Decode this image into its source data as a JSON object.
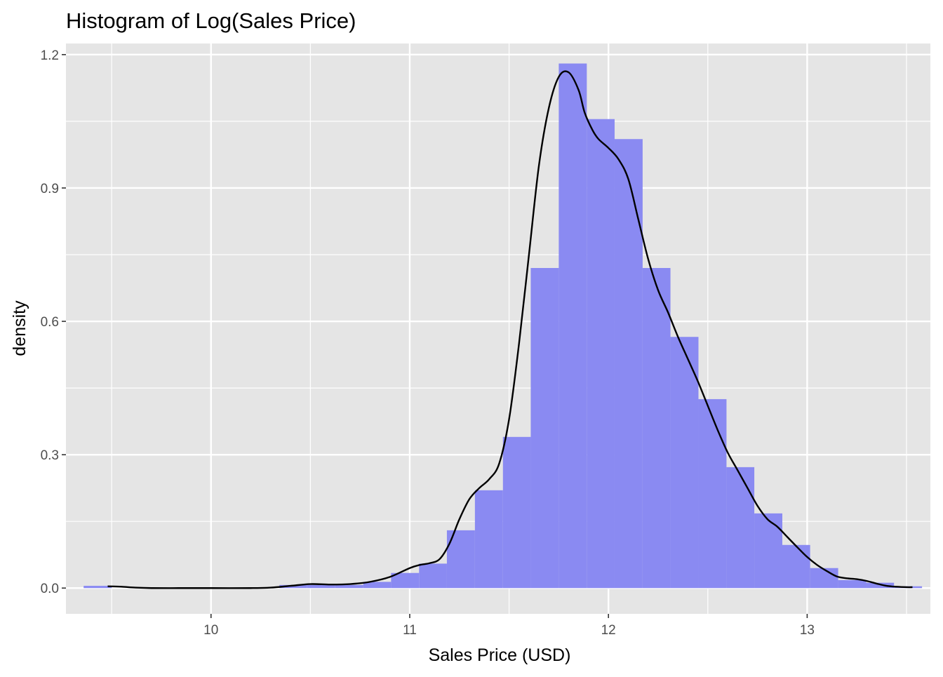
{
  "chart_data": {
    "type": "bar",
    "title": "Histogram of Log(Sales Price)",
    "xlabel": "Sales Price (USD)",
    "ylabel": "density",
    "xlim": [
      9.27,
      13.62
    ],
    "ylim": [
      -0.058,
      1.225
    ],
    "x_ticks": [
      10,
      11,
      12,
      13
    ],
    "x_tick_labels": [
      "10",
      "11",
      "12",
      "13"
    ],
    "x_minor_ticks": [
      9.5,
      10.5,
      11.5,
      12.5,
      13.5
    ],
    "y_ticks": [
      0.0,
      0.3,
      0.6,
      0.9,
      1.2
    ],
    "y_tick_labels": [
      "0.0",
      "0.3",
      "0.6",
      "0.9",
      "1.2"
    ],
    "y_minor_ticks": [
      0.15,
      0.45,
      0.75,
      1.05
    ],
    "grid": true,
    "legend": "none",
    "colors": {
      "panel_background": "#e5e5e5",
      "grid": "#ffffff",
      "bar_fill": "#8a8af2",
      "density_line": "#000000",
      "tick_text": "#4d4d4d"
    },
    "series": [
      {
        "type": "histogram",
        "bin_width": 0.1406,
        "bins": [
          {
            "x0": 9.359,
            "x1": 9.5,
            "density": 0.005
          },
          {
            "x0": 9.5,
            "x1": 9.64,
            "density": 0.0
          },
          {
            "x0": 9.64,
            "x1": 9.781,
            "density": 0.0
          },
          {
            "x0": 9.781,
            "x1": 9.922,
            "density": 0.0
          },
          {
            "x0": 9.922,
            "x1": 10.062,
            "density": 0.0
          },
          {
            "x0": 10.062,
            "x1": 10.203,
            "density": 0.0
          },
          {
            "x0": 10.203,
            "x1": 10.344,
            "density": 0.0
          },
          {
            "x0": 10.344,
            "x1": 10.484,
            "density": 0.007
          },
          {
            "x0": 10.484,
            "x1": 10.625,
            "density": 0.007
          },
          {
            "x0": 10.625,
            "x1": 10.766,
            "density": 0.007
          },
          {
            "x0": 10.766,
            "x1": 10.906,
            "density": 0.014
          },
          {
            "x0": 10.906,
            "x1": 11.047,
            "density": 0.034
          },
          {
            "x0": 11.047,
            "x1": 11.187,
            "density": 0.055
          },
          {
            "x0": 11.187,
            "x1": 11.328,
            "density": 0.13
          },
          {
            "x0": 11.328,
            "x1": 11.469,
            "density": 0.22
          },
          {
            "x0": 11.469,
            "x1": 11.609,
            "density": 0.34
          },
          {
            "x0": 11.609,
            "x1": 11.75,
            "density": 0.72
          },
          {
            "x0": 11.75,
            "x1": 11.891,
            "density": 1.18
          },
          {
            "x0": 11.891,
            "x1": 12.031,
            "density": 1.055
          },
          {
            "x0": 12.031,
            "x1": 12.172,
            "density": 1.01
          },
          {
            "x0": 12.172,
            "x1": 12.312,
            "density": 0.72
          },
          {
            "x0": 12.312,
            "x1": 12.453,
            "density": 0.565
          },
          {
            "x0": 12.453,
            "x1": 12.594,
            "density": 0.425
          },
          {
            "x0": 12.594,
            "x1": 12.734,
            "density": 0.272
          },
          {
            "x0": 12.734,
            "x1": 12.875,
            "density": 0.168
          },
          {
            "x0": 12.875,
            "x1": 13.015,
            "density": 0.097
          },
          {
            "x0": 13.015,
            "x1": 13.156,
            "density": 0.045
          },
          {
            "x0": 13.156,
            "x1": 13.297,
            "density": 0.018
          },
          {
            "x0": 13.297,
            "x1": 13.437,
            "density": 0.012
          },
          {
            "x0": 13.437,
            "x1": 13.578,
            "density": 0.004
          }
        ]
      },
      {
        "type": "density-line",
        "x": [
          9.48,
          9.55,
          9.62,
          9.7,
          9.85,
          10.0,
          10.2,
          10.3,
          10.4,
          10.5,
          10.6,
          10.7,
          10.8,
          10.9,
          11.0,
          11.05,
          11.1,
          11.15,
          11.2,
          11.25,
          11.3,
          11.35,
          11.4,
          11.45,
          11.5,
          11.55,
          11.6,
          11.65,
          11.7,
          11.75,
          11.8,
          11.85,
          11.88,
          11.92,
          11.95,
          12.0,
          12.05,
          12.1,
          12.15,
          12.2,
          12.25,
          12.3,
          12.35,
          12.4,
          12.45,
          12.5,
          12.55,
          12.6,
          12.65,
          12.7,
          12.75,
          12.8,
          12.85,
          12.9,
          12.95,
          13.0,
          13.05,
          13.1,
          13.15,
          13.2,
          13.25,
          13.3,
          13.35,
          13.4,
          13.45,
          13.5,
          13.53
        ],
        "y": [
          0.004,
          0.003,
          0.001,
          0.0,
          0.0,
          0.0,
          0.0,
          0.001,
          0.005,
          0.009,
          0.008,
          0.009,
          0.014,
          0.025,
          0.045,
          0.052,
          0.056,
          0.065,
          0.1,
          0.155,
          0.2,
          0.225,
          0.245,
          0.28,
          0.38,
          0.55,
          0.75,
          0.95,
          1.08,
          1.15,
          1.16,
          1.12,
          1.07,
          1.03,
          1.01,
          0.99,
          0.965,
          0.92,
          0.83,
          0.74,
          0.67,
          0.62,
          0.565,
          0.515,
          0.465,
          0.41,
          0.355,
          0.305,
          0.265,
          0.225,
          0.185,
          0.155,
          0.138,
          0.115,
          0.092,
          0.07,
          0.052,
          0.038,
          0.026,
          0.022,
          0.02,
          0.016,
          0.01,
          0.005,
          0.003,
          0.002,
          0.002
        ]
      }
    ]
  }
}
